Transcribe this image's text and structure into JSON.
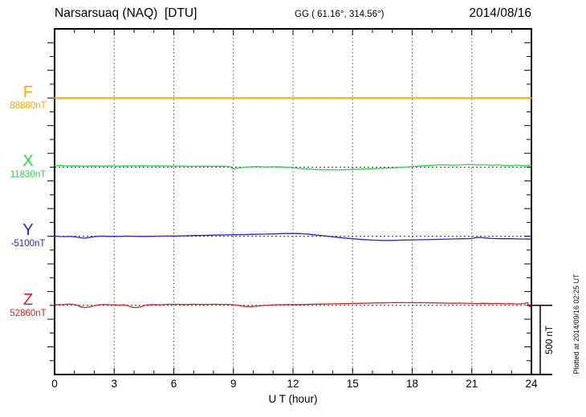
{
  "header": {
    "station": "Narsarsuaq (NAQ)  [DTU]",
    "coords": "GG ( 61.16°, 314.56°)",
    "date": "2014/08/16"
  },
  "xaxis": {
    "label": "U T (hour)"
  },
  "scale_bar_label": "500 nT",
  "plotted_at": "Plotted at 2014/09/16 02:25 UT",
  "chart_data": {
    "type": "line",
    "title": "Narsarsuaq (NAQ) [DTU] magnetogram 2014/08/16",
    "xlabel": "U T (hour)",
    "x_range": [
      0,
      24
    ],
    "x_ticks": [
      0,
      3,
      6,
      9,
      12,
      15,
      18,
      21,
      24
    ],
    "x_minor_tick_step_hours": 1,
    "grid": "dotted vertical lines every 3 hours, dotted horizontal baseline per component",
    "scale_bar_nT": 500,
    "y_minor_tick_nT": 100,
    "series": [
      {
        "name": "F",
        "value_label": "88880nT",
        "baseline_nT": 88880,
        "color": "#FFA500",
        "points": [
          [
            0,
            0
          ],
          [
            24,
            0
          ]
        ]
      },
      {
        "name": "X",
        "value_label": "11830nT",
        "baseline_nT": 11830,
        "color": "#2FD24F",
        "points": [
          [
            0,
            9
          ],
          [
            0.3,
            13
          ],
          [
            0.6,
            8
          ],
          [
            1,
            9
          ],
          [
            1.5,
            7
          ],
          [
            2,
            9
          ],
          [
            2.4,
            7
          ],
          [
            2.8,
            9
          ],
          [
            3.2,
            7
          ],
          [
            3.6,
            9
          ],
          [
            4,
            8
          ],
          [
            4.4,
            10
          ],
          [
            4.8,
            8
          ],
          [
            5.2,
            9
          ],
          [
            5.6,
            8
          ],
          [
            6,
            7
          ],
          [
            6.5,
            8
          ],
          [
            7,
            6
          ],
          [
            7.5,
            7
          ],
          [
            8,
            6
          ],
          [
            8.4,
            7
          ],
          [
            8.8,
            5
          ],
          [
            9,
            -14
          ],
          [
            9.2,
            -7
          ],
          [
            9.5,
            -1
          ],
          [
            9.8,
            2
          ],
          [
            10.2,
            4
          ],
          [
            10.6,
            2
          ],
          [
            11,
            3
          ],
          [
            11.4,
            1
          ],
          [
            11.8,
            -2
          ],
          [
            12.2,
            -7
          ],
          [
            12.6,
            -12
          ],
          [
            13,
            -16
          ],
          [
            13.5,
            -19
          ],
          [
            14,
            -20
          ],
          [
            14.5,
            -19
          ],
          [
            15,
            -17
          ],
          [
            15.5,
            -14
          ],
          [
            16,
            -11
          ],
          [
            16.5,
            -8
          ],
          [
            17,
            -5
          ],
          [
            17.5,
            -1
          ],
          [
            18,
            4
          ],
          [
            18.5,
            9
          ],
          [
            19,
            13
          ],
          [
            19.5,
            17
          ],
          [
            19.8,
            15
          ],
          [
            20.1,
            13
          ],
          [
            20.4,
            16
          ],
          [
            20.7,
            18
          ],
          [
            21,
            19
          ],
          [
            21.3,
            15
          ],
          [
            21.6,
            17
          ],
          [
            22,
            13
          ],
          [
            22.3,
            16
          ],
          [
            22.6,
            12
          ],
          [
            23,
            11
          ],
          [
            23.3,
            14
          ],
          [
            23.6,
            9
          ],
          [
            23.8,
            12
          ],
          [
            24,
            11
          ]
        ]
      },
      {
        "name": "Y",
        "value_label": "-5100nT",
        "baseline_nT": -5100,
        "color": "#2323D9",
        "points": [
          [
            0,
            1
          ],
          [
            0.25,
            -2
          ],
          [
            0.5,
            -3
          ],
          [
            0.8,
            -2
          ],
          [
            1,
            -4
          ],
          [
            1.2,
            -8
          ],
          [
            1.45,
            -14
          ],
          [
            1.7,
            -10
          ],
          [
            1.9,
            -5
          ],
          [
            2.1,
            -1
          ],
          [
            2.4,
            1
          ],
          [
            2.7,
            -1
          ],
          [
            3,
            0
          ],
          [
            3.3,
            -2
          ],
          [
            3.6,
            1
          ],
          [
            4,
            0
          ],
          [
            4.5,
            -1
          ],
          [
            5,
            0
          ],
          [
            5.5,
            1
          ],
          [
            6,
            2
          ],
          [
            6.5,
            3
          ],
          [
            7,
            5
          ],
          [
            7.5,
            6
          ],
          [
            8,
            8
          ],
          [
            8.5,
            9
          ],
          [
            9,
            11
          ],
          [
            9.5,
            12
          ],
          [
            10,
            14
          ],
          [
            10.5,
            15
          ],
          [
            11,
            17
          ],
          [
            11.5,
            19
          ],
          [
            12,
            20
          ],
          [
            12.3,
            19
          ],
          [
            12.7,
            16
          ],
          [
            13,
            11
          ],
          [
            13.5,
            4
          ],
          [
            14,
            -4
          ],
          [
            14.5,
            -12
          ],
          [
            15,
            -18
          ],
          [
            15.5,
            -24
          ],
          [
            16,
            -28
          ],
          [
            16.5,
            -30
          ],
          [
            17,
            -30
          ],
          [
            17.5,
            -28
          ],
          [
            18,
            -26
          ],
          [
            18.5,
            -25
          ],
          [
            19,
            -23
          ],
          [
            19.5,
            -22
          ],
          [
            20,
            -20
          ],
          [
            20.5,
            -18
          ],
          [
            21,
            -17
          ],
          [
            21.2,
            -10
          ],
          [
            21.45,
            -8
          ],
          [
            21.7,
            -13
          ],
          [
            22,
            -16
          ],
          [
            22.5,
            -18
          ],
          [
            23,
            -18
          ],
          [
            23.5,
            -20
          ],
          [
            24,
            -21
          ]
        ]
      },
      {
        "name": "Z",
        "value_label": "52860nT",
        "baseline_nT": 52860,
        "color": "#E01F1F",
        "points": [
          [
            0,
            6
          ],
          [
            0.4,
            5
          ],
          [
            0.7,
            10
          ],
          [
            0.9,
            8
          ],
          [
            1.1,
            3
          ],
          [
            1.3,
            -10
          ],
          [
            1.5,
            -16
          ],
          [
            1.75,
            -12
          ],
          [
            2,
            -3
          ],
          [
            2.2,
            4
          ],
          [
            2.5,
            7
          ],
          [
            2.8,
            4
          ],
          [
            3,
            5
          ],
          [
            3.2,
            2
          ],
          [
            3.5,
            4
          ],
          [
            3.7,
            -3
          ],
          [
            3.9,
            -14
          ],
          [
            4.1,
            -16
          ],
          [
            4.35,
            -10
          ],
          [
            4.6,
            3
          ],
          [
            5,
            6
          ],
          [
            5.3,
            4
          ],
          [
            5.6,
            7
          ],
          [
            6,
            8
          ],
          [
            6.5,
            6
          ],
          [
            7,
            8
          ],
          [
            7.5,
            6
          ],
          [
            8,
            8
          ],
          [
            8.5,
            7
          ],
          [
            9,
            5
          ],
          [
            9.3,
            -2
          ],
          [
            9.6,
            -8
          ],
          [
            9.9,
            -9
          ],
          [
            10.2,
            -5
          ],
          [
            10.5,
            -1
          ],
          [
            10.8,
            2
          ],
          [
            11,
            4
          ],
          [
            11.5,
            5
          ],
          [
            12,
            6
          ],
          [
            12.5,
            6
          ],
          [
            13,
            8
          ],
          [
            13.5,
            9
          ],
          [
            14,
            11
          ],
          [
            14.5,
            12
          ],
          [
            15,
            14
          ],
          [
            15.5,
            15
          ],
          [
            16,
            17
          ],
          [
            16.5,
            18
          ],
          [
            17,
            20
          ],
          [
            17.5,
            20
          ],
          [
            18,
            19
          ],
          [
            18.5,
            20
          ],
          [
            19,
            18
          ],
          [
            19.5,
            17
          ],
          [
            20,
            15
          ],
          [
            20.5,
            16
          ],
          [
            21,
            14
          ],
          [
            21.3,
            12
          ],
          [
            21.6,
            15
          ],
          [
            22,
            12
          ],
          [
            22.3,
            14
          ],
          [
            22.7,
            11
          ],
          [
            23,
            13
          ],
          [
            23.3,
            10
          ],
          [
            23.6,
            13
          ],
          [
            23.8,
            20
          ],
          [
            23.9,
            -8
          ],
          [
            24,
            -12
          ]
        ]
      }
    ]
  }
}
